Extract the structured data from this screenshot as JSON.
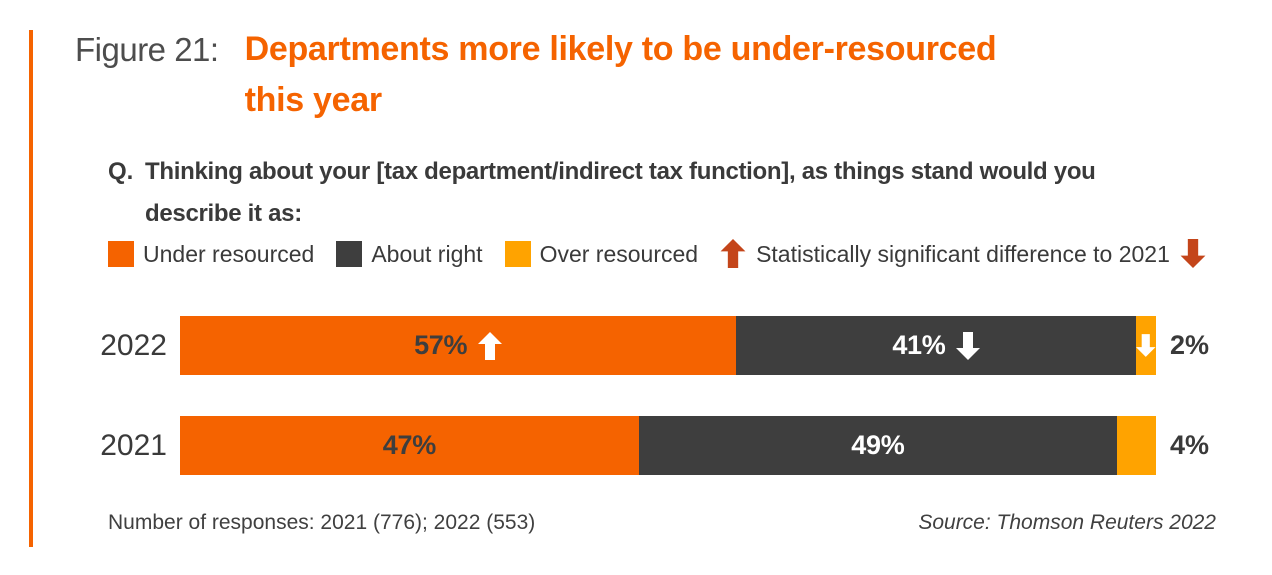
{
  "accent_color": "#F56300",
  "figure": {
    "label": "Figure 21:",
    "title_line1": "Departments more likely to be under-resourced",
    "title_line2": "this year",
    "title_color": "#F56300"
  },
  "question": {
    "prefix": "Q.",
    "line1": "Thinking about your [tax department/indirect tax function], as things stand would you",
    "line2": "describe it as:"
  },
  "legend": {
    "items": [
      {
        "label": "Under resourced",
        "color": "#F56300"
      },
      {
        "label": "About right",
        "color": "#3E3E3E"
      },
      {
        "label": "Over resourced",
        "color": "#FFA300"
      }
    ],
    "significance": {
      "label": "Statistically significant difference to 2021",
      "arrow_color": "#C4451A"
    }
  },
  "chart_data": {
    "type": "bar",
    "orientation": "horizontal",
    "stacked": true,
    "unit": "%",
    "xlim": [
      0,
      100
    ],
    "inside_label_min": 10,
    "categories": [
      "2022",
      "2021"
    ],
    "series": [
      {
        "name": "Under resourced",
        "color": "#F56300",
        "label_color": "#3E3E3E",
        "values": [
          57,
          47
        ]
      },
      {
        "name": "About right",
        "color": "#3E3E3E",
        "label_color": "#FFFFFF",
        "values": [
          41,
          49
        ]
      },
      {
        "name": "Over resourced",
        "color": "#FFA300",
        "label_color": "#3A3A3A",
        "values": [
          2,
          4
        ]
      }
    ],
    "significance_arrows": [
      {
        "category": "2022",
        "series": "Under resourced",
        "direction": "up",
        "color": "#FFFFFF"
      },
      {
        "category": "2022",
        "series": "About right",
        "direction": "down",
        "color": "#FFFFFF"
      },
      {
        "category": "2022",
        "series": "Over resourced",
        "direction": "down",
        "color": "#FFFFFF"
      }
    ]
  },
  "footer": {
    "responses": "Number of responses: 2021 (776); 2022 (553)",
    "source": "Source: Thomson Reuters 2022"
  }
}
